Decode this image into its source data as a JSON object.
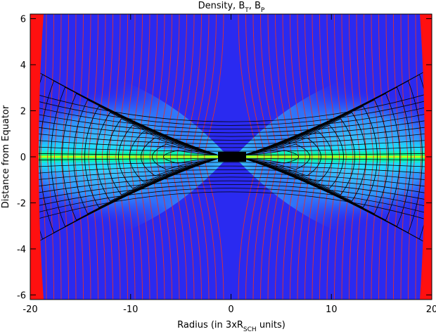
{
  "chart_data": {
    "type": "field-map",
    "title": [
      "Density, B",
      "T",
      ", B",
      "P"
    ],
    "xlabel": [
      "Radius (in 3xR",
      "SCH",
      " units)"
    ],
    "ylabel": "Distance from Equator",
    "xlim": [
      -20,
      20
    ],
    "xticks": [
      -20,
      -10,
      0,
      10,
      20
    ],
    "ylim": [
      -6.2,
      6.2
    ],
    "yticks": [
      -6,
      -4,
      -2,
      0,
      2,
      4,
      6
    ]
  }
}
